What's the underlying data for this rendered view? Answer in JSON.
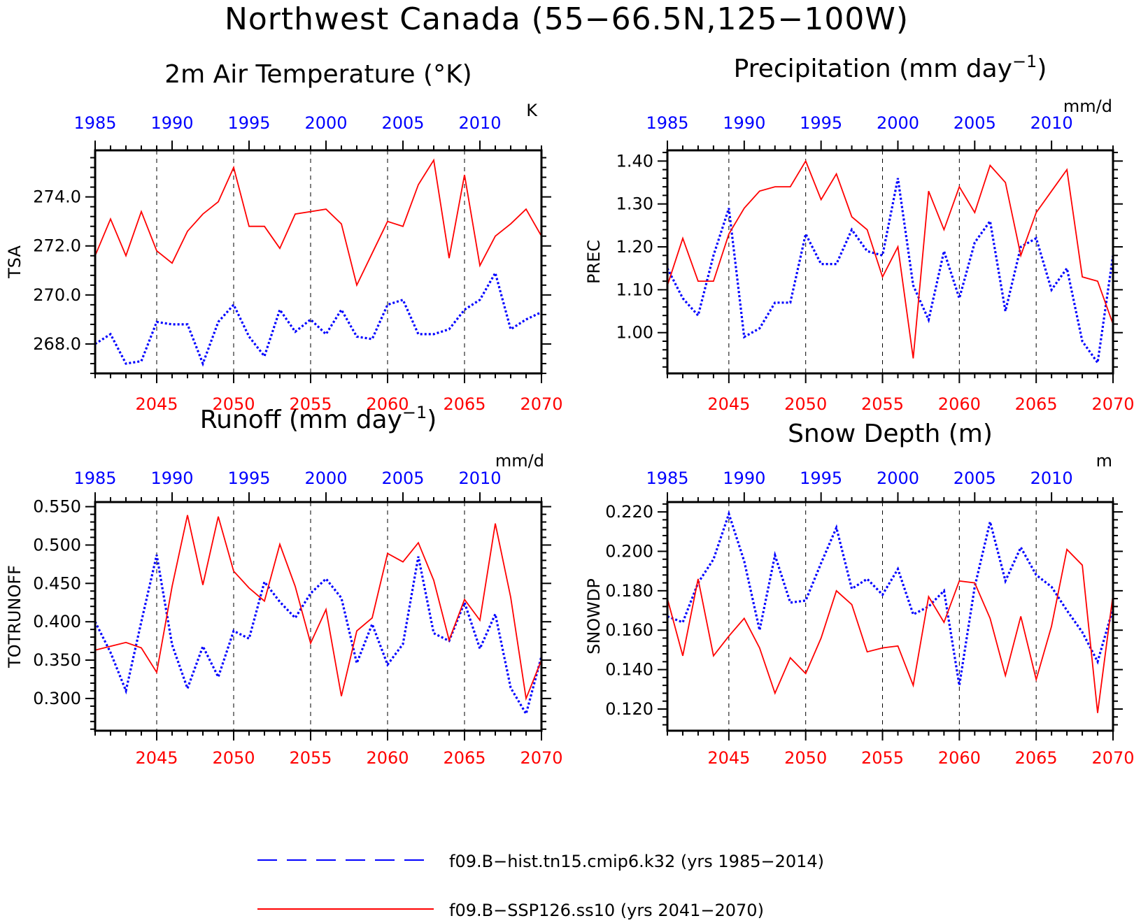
{
  "page": {
    "title": "Northwest Canada (55−66.5N,125−100W)"
  },
  "colors": {
    "hist": "#0000ff",
    "ssp": "#ff0000",
    "axis": "#000000",
    "grid": "#000000"
  },
  "legend": {
    "hist_label": "f09.B−hist.tn15.cmip6.k32 (yrs 1985−2014)",
    "ssp_label": "f09.B−SSP126.ss10 (yrs 2041−2070)"
  },
  "chart_data": [
    {
      "type": "line",
      "title": "2m Air Temperature (°K)",
      "unit": "K",
      "ylabel": "TSA",
      "xlim_bottom": [
        2041,
        2070
      ],
      "xlim_top": [
        1985,
        2014
      ],
      "bottom_ticks": [
        "2045",
        "2050",
        "2055",
        "2060",
        "2065",
        "2070"
      ],
      "top_ticks": [
        "1985",
        "1990",
        "1995",
        "2000",
        "2005",
        "2010"
      ],
      "ylim": [
        266.8,
        275.9
      ],
      "yticks": [
        "268.0",
        "270.0",
        "272.0",
        "274.0"
      ],
      "grid_x": [
        2045,
        2050,
        2055,
        2060,
        2065
      ],
      "series": [
        {
          "name": "f09.B−hist.tn15.cmip6.k32",
          "x": [
            1985,
            1986,
            1987,
            1988,
            1989,
            1990,
            1991,
            1992,
            1993,
            1994,
            1995,
            1996,
            1997,
            1998,
            1999,
            2000,
            2001,
            2002,
            2003,
            2004,
            2005,
            2006,
            2007,
            2008,
            2009,
            2010,
            2011,
            2012,
            2013,
            2014
          ],
          "values": [
            268.0,
            268.4,
            267.2,
            267.3,
            268.9,
            268.8,
            268.8,
            267.2,
            268.9,
            269.6,
            268.3,
            267.5,
            269.4,
            268.5,
            269.0,
            268.4,
            269.4,
            268.3,
            268.2,
            269.6,
            269.8,
            268.4,
            268.4,
            268.6,
            269.4,
            269.8,
            270.9,
            268.6,
            269.0,
            269.3
          ]
        },
        {
          "name": "f09.B−SSP126.ss10",
          "x": [
            2041,
            2042,
            2043,
            2044,
            2045,
            2046,
            2047,
            2048,
            2049,
            2050,
            2051,
            2052,
            2053,
            2054,
            2055,
            2056,
            2057,
            2058,
            2059,
            2060,
            2061,
            2062,
            2063,
            2064,
            2065,
            2066,
            2067,
            2068,
            2069,
            2070
          ],
          "values": [
            271.6,
            273.1,
            271.6,
            273.4,
            271.8,
            271.3,
            272.6,
            273.3,
            273.8,
            275.2,
            272.8,
            272.8,
            271.9,
            273.3,
            273.4,
            273.5,
            272.9,
            270.4,
            271.7,
            273.0,
            272.8,
            274.5,
            275.5,
            271.5,
            274.9,
            271.2,
            272.4,
            272.9,
            273.5,
            272.4
          ]
        }
      ]
    },
    {
      "type": "line",
      "title": "Precipitation (mm day",
      "title_sup": "−1",
      "title_end": ")",
      "unit": "mm/d",
      "ylabel": "PREC",
      "xlim_bottom": [
        2041,
        2070
      ],
      "xlim_top": [
        1985,
        2014
      ],
      "bottom_ticks": [
        "2045",
        "2050",
        "2055",
        "2060",
        "2065",
        "2070"
      ],
      "top_ticks": [
        "1985",
        "1990",
        "1995",
        "2000",
        "2005",
        "2010"
      ],
      "ylim": [
        0.905,
        1.425
      ],
      "yticks": [
        "1.00",
        "1.10",
        "1.20",
        "1.30",
        "1.40"
      ],
      "grid_x": [
        2045,
        2050,
        2055,
        2060,
        2065
      ],
      "series": [
        {
          "name": "f09.B−hist.tn15.cmip6.k32",
          "x": [
            1985,
            1986,
            1987,
            1988,
            1989,
            1990,
            1991,
            1992,
            1993,
            1994,
            1995,
            1996,
            1997,
            1998,
            1999,
            2000,
            2001,
            2002,
            2003,
            2004,
            2005,
            2006,
            2007,
            2008,
            2009,
            2010,
            2011,
            2012,
            2013,
            2014
          ],
          "values": [
            1.15,
            1.08,
            1.04,
            1.18,
            1.29,
            0.99,
            1.01,
            1.07,
            1.07,
            1.23,
            1.16,
            1.16,
            1.24,
            1.19,
            1.18,
            1.36,
            1.11,
            1.03,
            1.19,
            1.08,
            1.21,
            1.26,
            1.05,
            1.2,
            1.22,
            1.1,
            1.15,
            0.98,
            0.93,
            1.18
          ]
        },
        {
          "name": "f09.B−SSP126.ss10",
          "x": [
            2041,
            2042,
            2043,
            2044,
            2045,
            2046,
            2047,
            2048,
            2049,
            2050,
            2051,
            2052,
            2053,
            2054,
            2055,
            2056,
            2057,
            2058,
            2059,
            2060,
            2061,
            2062,
            2063,
            2064,
            2065,
            2066,
            2067,
            2068,
            2069,
            2070
          ],
          "values": [
            1.11,
            1.22,
            1.12,
            1.12,
            1.23,
            1.29,
            1.33,
            1.34,
            1.34,
            1.4,
            1.31,
            1.37,
            1.27,
            1.24,
            1.13,
            1.2,
            0.94,
            1.33,
            1.24,
            1.34,
            1.28,
            1.39,
            1.35,
            1.18,
            1.28,
            1.33,
            1.38,
            1.13,
            1.12,
            1.02
          ]
        }
      ]
    },
    {
      "type": "line",
      "title": "Runoff (mm day",
      "title_sup": "−1",
      "title_end": ")",
      "unit": "mm/d",
      "ylabel": "TOTRUNOFF",
      "xlim_bottom": [
        2041,
        2070
      ],
      "xlim_top": [
        1985,
        2014
      ],
      "bottom_ticks": [
        "2045",
        "2050",
        "2055",
        "2060",
        "2065",
        "2070"
      ],
      "top_ticks": [
        "1985",
        "1990",
        "1995",
        "2000",
        "2005",
        "2010"
      ],
      "ylim": [
        0.258,
        0.556
      ],
      "yticks": [
        "0.300",
        "0.350",
        "0.400",
        "0.450",
        "0.500",
        "0.550"
      ],
      "grid_x": [
        2045,
        2050,
        2055,
        2060,
        2065
      ],
      "series": [
        {
          "name": "f09.B−hist.tn15.cmip6.k32",
          "x": [
            1985,
            1986,
            1987,
            1988,
            1989,
            1990,
            1991,
            1992,
            1993,
            1994,
            1995,
            1996,
            1997,
            1998,
            1999,
            2000,
            2001,
            2002,
            2003,
            2004,
            2005,
            2006,
            2007,
            2008,
            2009,
            2010,
            2011,
            2012,
            2013,
            2014
          ],
          "values": [
            0.4,
            0.36,
            0.31,
            0.4,
            0.487,
            0.37,
            0.313,
            0.368,
            0.328,
            0.388,
            0.378,
            0.452,
            0.426,
            0.405,
            0.437,
            0.456,
            0.431,
            0.346,
            0.397,
            0.344,
            0.371,
            0.485,
            0.385,
            0.375,
            0.425,
            0.365,
            0.41,
            0.314,
            0.28,
            0.355
          ]
        },
        {
          "name": "f09.B−SSP126.ss10",
          "x": [
            2041,
            2042,
            2043,
            2044,
            2045,
            2046,
            2047,
            2048,
            2049,
            2050,
            2051,
            2052,
            2053,
            2054,
            2055,
            2056,
            2057,
            2058,
            2059,
            2060,
            2061,
            2062,
            2063,
            2064,
            2065,
            2066,
            2067,
            2068,
            2069,
            2070
          ],
          "values": [
            0.363,
            0.368,
            0.373,
            0.366,
            0.334,
            0.446,
            0.539,
            0.448,
            0.537,
            0.466,
            0.444,
            0.427,
            0.501,
            0.446,
            0.372,
            0.416,
            0.303,
            0.388,
            0.405,
            0.489,
            0.478,
            0.503,
            0.454,
            0.376,
            0.429,
            0.402,
            0.528,
            0.432,
            0.3,
            0.35
          ]
        }
      ]
    },
    {
      "type": "line",
      "title": "Snow Depth (m)",
      "unit": "m",
      "ylabel": "SNOWDP",
      "xlim_bottom": [
        2041,
        2070
      ],
      "xlim_top": [
        1985,
        2014
      ],
      "bottom_ticks": [
        "2045",
        "2050",
        "2055",
        "2060",
        "2065",
        "2070"
      ],
      "top_ticks": [
        "1985",
        "1990",
        "1995",
        "2000",
        "2005",
        "2010"
      ],
      "ylim": [
        0.109,
        0.225
      ],
      "yticks": [
        "0.120",
        "0.140",
        "0.160",
        "0.180",
        "0.200",
        "0.220"
      ],
      "grid_x": [
        2045,
        2050,
        2055,
        2060,
        2065
      ],
      "series": [
        {
          "name": "f09.B−hist.tn15.cmip6.k32",
          "x": [
            1985,
            1986,
            1987,
            1988,
            1989,
            1990,
            1991,
            1992,
            1993,
            1994,
            1995,
            1996,
            1997,
            1998,
            1999,
            2000,
            2001,
            2002,
            2003,
            2004,
            2005,
            2006,
            2007,
            2008,
            2009,
            2010,
            2011,
            2012,
            2013,
            2014
          ],
          "values": [
            0.167,
            0.164,
            0.184,
            0.196,
            0.219,
            0.195,
            0.16,
            0.198,
            0.174,
            0.175,
            0.194,
            0.212,
            0.181,
            0.186,
            0.178,
            0.191,
            0.168,
            0.172,
            0.18,
            0.132,
            0.182,
            0.215,
            0.185,
            0.202,
            0.188,
            0.182,
            0.17,
            0.159,
            0.144,
            0.171
          ]
        },
        {
          "name": "f09.B−SSP126.ss10",
          "x": [
            2041,
            2042,
            2043,
            2044,
            2045,
            2046,
            2047,
            2048,
            2049,
            2050,
            2051,
            2052,
            2053,
            2054,
            2055,
            2056,
            2057,
            2058,
            2059,
            2060,
            2061,
            2062,
            2063,
            2064,
            2065,
            2066,
            2067,
            2068,
            2069,
            2070
          ],
          "values": [
            0.176,
            0.147,
            0.186,
            0.147,
            0.157,
            0.166,
            0.151,
            0.128,
            0.146,
            0.138,
            0.156,
            0.18,
            0.173,
            0.149,
            0.151,
            0.152,
            0.132,
            0.177,
            0.164,
            0.185,
            0.184,
            0.166,
            0.137,
            0.167,
            0.135,
            0.162,
            0.201,
            0.193,
            0.118,
            0.178
          ]
        }
      ]
    }
  ]
}
